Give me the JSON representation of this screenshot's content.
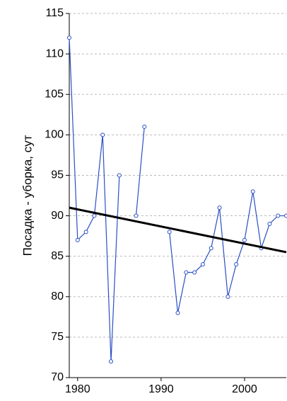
{
  "chart_data": {
    "type": "line",
    "y_label": "Посадка - уборка, сут",
    "x": [
      1979,
      1980,
      1981,
      1982,
      1983,
      1984,
      1985,
      1986,
      1987,
      1988,
      1989,
      1990,
      1991,
      1992,
      1993,
      1994,
      1995,
      1996,
      1997,
      1998,
      1999,
      2000,
      2001,
      2002,
      2003,
      2004,
      2005
    ],
    "series": [
      {
        "color": "#2b4fc4",
        "values": [
          112,
          87,
          88,
          90,
          100,
          72,
          95,
          null,
          90,
          101,
          null,
          null,
          88,
          78,
          83,
          83,
          84,
          86,
          91,
          80,
          84,
          87,
          93,
          86,
          89,
          90,
          90
        ]
      }
    ],
    "trend": {
      "color": "#000000",
      "x": [
        1979,
        2005
      ],
      "values": [
        91,
        85.5
      ]
    },
    "xlim": [
      1979,
      2005
    ],
    "xticks": [
      1980,
      1990,
      2000
    ],
    "ylim": [
      70,
      115
    ],
    "yticks": [
      70,
      75,
      80,
      85,
      90,
      95,
      100,
      105,
      110,
      115
    ],
    "grid": true
  }
}
